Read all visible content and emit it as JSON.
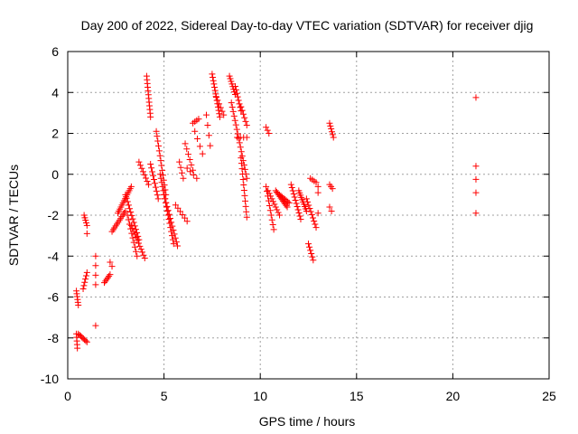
{
  "chart_data": {
    "type": "scatter",
    "title": "Day 200 of 2022, Sidereal Day-to-day VTEC variation (SDTVAR) for receiver djig",
    "xlabel": "GPS time / hours",
    "ylabel": "SDTVAR / TECUs",
    "xlim": [
      0,
      25
    ],
    "ylim": [
      -10,
      6
    ],
    "xticks": [
      0,
      5,
      10,
      15,
      20,
      25
    ],
    "yticks": [
      -10,
      -8,
      -6,
      -4,
      -2,
      0,
      2,
      4,
      6
    ],
    "xtick_labels": [
      "0",
      "5",
      "10",
      "15",
      "20",
      "25"
    ],
    "ytick_labels": [
      "-10",
      "-8",
      "-6",
      "-4",
      "-2",
      "0",
      "2",
      "4",
      "6"
    ],
    "grid": true,
    "marker": "+",
    "color": "#ff0000",
    "segments": [
      {
        "x0": 0.45,
        "x1": 0.55,
        "y0": -5.7,
        "y1": -6.4,
        "n": 6
      },
      {
        "x0": 0.45,
        "x1": 0.5,
        "y0": -7.8,
        "y1": -8.5,
        "n": 5
      },
      {
        "x0": 0.55,
        "x1": 1.0,
        "y0": -7.8,
        "y1": -8.2,
        "n": 8
      },
      {
        "x0": 0.8,
        "x1": 1.0,
        "y0": -5.6,
        "y1": -4.8,
        "n": 6
      },
      {
        "x0": 0.85,
        "x1": 1.0,
        "y0": -2.0,
        "y1": -2.5,
        "n": 5
      },
      {
        "x0": 1.0,
        "x1": 1.0,
        "y0": -2.9,
        "y1": -2.9,
        "n": 1
      },
      {
        "x0": 1.45,
        "x1": 1.45,
        "y0": -4.0,
        "y1": -5.4,
        "n": 4
      },
      {
        "x0": 1.45,
        "x1": 1.45,
        "y0": -7.4,
        "y1": -7.4,
        "n": 1
      },
      {
        "x0": 1.9,
        "x1": 2.2,
        "y0": -5.3,
        "y1": -4.9,
        "n": 6
      },
      {
        "x0": 2.2,
        "x1": 2.3,
        "y0": -4.3,
        "y1": -4.5,
        "n": 2
      },
      {
        "x0": 2.3,
        "x1": 3.0,
        "y0": -2.8,
        "y1": -1.8,
        "n": 12
      },
      {
        "x0": 2.6,
        "x1": 3.3,
        "y0": -1.9,
        "y1": -0.6,
        "n": 14
      },
      {
        "x0": 3.0,
        "x1": 3.7,
        "y0": -1.0,
        "y1": -3.2,
        "n": 14
      },
      {
        "x0": 3.1,
        "x1": 3.6,
        "y0": -2.0,
        "y1": -4.0,
        "n": 10
      },
      {
        "x0": 3.3,
        "x1": 4.0,
        "y0": -2.5,
        "y1": -4.1,
        "n": 12
      },
      {
        "x0": 3.7,
        "x1": 4.2,
        "y0": 0.6,
        "y1": -0.5,
        "n": 8
      },
      {
        "x0": 4.1,
        "x1": 4.3,
        "y0": 4.8,
        "y1": 2.8,
        "n": 12
      },
      {
        "x0": 4.3,
        "x1": 4.7,
        "y0": 0.5,
        "y1": -1.2,
        "n": 10
      },
      {
        "x0": 4.6,
        "x1": 5.1,
        "y0": 2.1,
        "y1": -1.0,
        "n": 14
      },
      {
        "x0": 4.8,
        "x1": 5.5,
        "y0": 0.0,
        "y1": -3.4,
        "n": 18
      },
      {
        "x0": 5.0,
        "x1": 5.7,
        "y0": -1.0,
        "y1": -3.5,
        "n": 14
      },
      {
        "x0": 5.6,
        "x1": 6.2,
        "y0": -1.5,
        "y1": -2.3,
        "n": 6
      },
      {
        "x0": 5.8,
        "x1": 6.0,
        "y0": 0.6,
        "y1": -0.2,
        "n": 4
      },
      {
        "x0": 6.1,
        "x1": 6.5,
        "y0": 1.5,
        "y1": 0.2,
        "n": 6
      },
      {
        "x0": 6.2,
        "x1": 6.7,
        "y0": 0.3,
        "y1": -0.2,
        "n": 4
      },
      {
        "x0": 6.5,
        "x1": 6.8,
        "y0": 2.5,
        "y1": 2.7,
        "n": 4
      },
      {
        "x0": 6.6,
        "x1": 7.0,
        "y0": 2.1,
        "y1": 1.0,
        "n": 4
      },
      {
        "x0": 7.2,
        "x1": 7.4,
        "y0": 2.9,
        "y1": 1.4,
        "n": 4
      },
      {
        "x0": 7.5,
        "x1": 7.9,
        "y0": 4.9,
        "y1": 2.8,
        "n": 14
      },
      {
        "x0": 7.7,
        "x1": 8.1,
        "y0": 3.8,
        "y1": 2.9,
        "n": 6
      },
      {
        "x0": 8.4,
        "x1": 8.7,
        "y0": 4.8,
        "y1": 3.9,
        "n": 8
      },
      {
        "x0": 8.5,
        "x1": 9.3,
        "y0": 3.5,
        "y1": -0.2,
        "n": 18
      },
      {
        "x0": 8.7,
        "x1": 9.0,
        "y0": 4.3,
        "y1": 3.1,
        "n": 8
      },
      {
        "x0": 8.8,
        "x1": 9.3,
        "y0": 1.8,
        "y1": 1.8,
        "n": 4
      },
      {
        "x0": 9.0,
        "x1": 9.3,
        "y0": 3.3,
        "y1": 2.4,
        "n": 6
      },
      {
        "x0": 9.0,
        "x1": 9.3,
        "y0": 0.8,
        "y1": -2.1,
        "n": 12
      },
      {
        "x0": 10.3,
        "x1": 10.45,
        "y0": 2.3,
        "y1": 2.0,
        "n": 3
      },
      {
        "x0": 10.3,
        "x1": 10.7,
        "y0": -0.6,
        "y1": -2.7,
        "n": 10
      },
      {
        "x0": 10.4,
        "x1": 11.0,
        "y0": -0.8,
        "y1": -2.0,
        "n": 10
      },
      {
        "x0": 10.8,
        "x1": 11.4,
        "y0": -0.8,
        "y1": -1.6,
        "n": 12
      },
      {
        "x0": 11.0,
        "x1": 11.5,
        "y0": -1.0,
        "y1": -1.4,
        "n": 8
      },
      {
        "x0": 11.6,
        "x1": 12.1,
        "y0": -0.5,
        "y1": -2.2,
        "n": 12
      },
      {
        "x0": 12.0,
        "x1": 12.4,
        "y0": -0.8,
        "y1": -1.8,
        "n": 10
      },
      {
        "x0": 12.4,
        "x1": 12.9,
        "y0": -1.2,
        "y1": -2.6,
        "n": 10
      },
      {
        "x0": 12.6,
        "x1": 12.9,
        "y0": -0.2,
        "y1": -0.4,
        "n": 4
      },
      {
        "x0": 12.5,
        "x1": 12.75,
        "y0": -3.4,
        "y1": -4.2,
        "n": 6
      },
      {
        "x0": 13.0,
        "x1": 13.0,
        "y0": -0.6,
        "y1": -0.9,
        "n": 2
      },
      {
        "x0": 13.0,
        "x1": 13.0,
        "y0": -1.9,
        "y1": -1.9,
        "n": 1
      },
      {
        "x0": 13.6,
        "x1": 13.8,
        "y0": 2.5,
        "y1": 1.8,
        "n": 6
      },
      {
        "x0": 13.6,
        "x1": 13.75,
        "y0": -0.5,
        "y1": -0.7,
        "n": 3
      },
      {
        "x0": 13.6,
        "x1": 13.7,
        "y0": -1.6,
        "y1": -1.8,
        "n": 2
      },
      {
        "x0": 21.2,
        "x1": 21.2,
        "y0": 3.75,
        "y1": 3.75,
        "n": 1
      },
      {
        "x0": 21.2,
        "x1": 21.2,
        "y0": 0.4,
        "y1": 0.4,
        "n": 1
      },
      {
        "x0": 21.2,
        "x1": 21.2,
        "y0": -0.25,
        "y1": -0.25,
        "n": 1
      },
      {
        "x0": 21.2,
        "x1": 21.2,
        "y0": -0.9,
        "y1": -0.9,
        "n": 1
      },
      {
        "x0": 21.2,
        "x1": 21.2,
        "y0": -1.9,
        "y1": -1.9,
        "n": 1
      }
    ]
  }
}
